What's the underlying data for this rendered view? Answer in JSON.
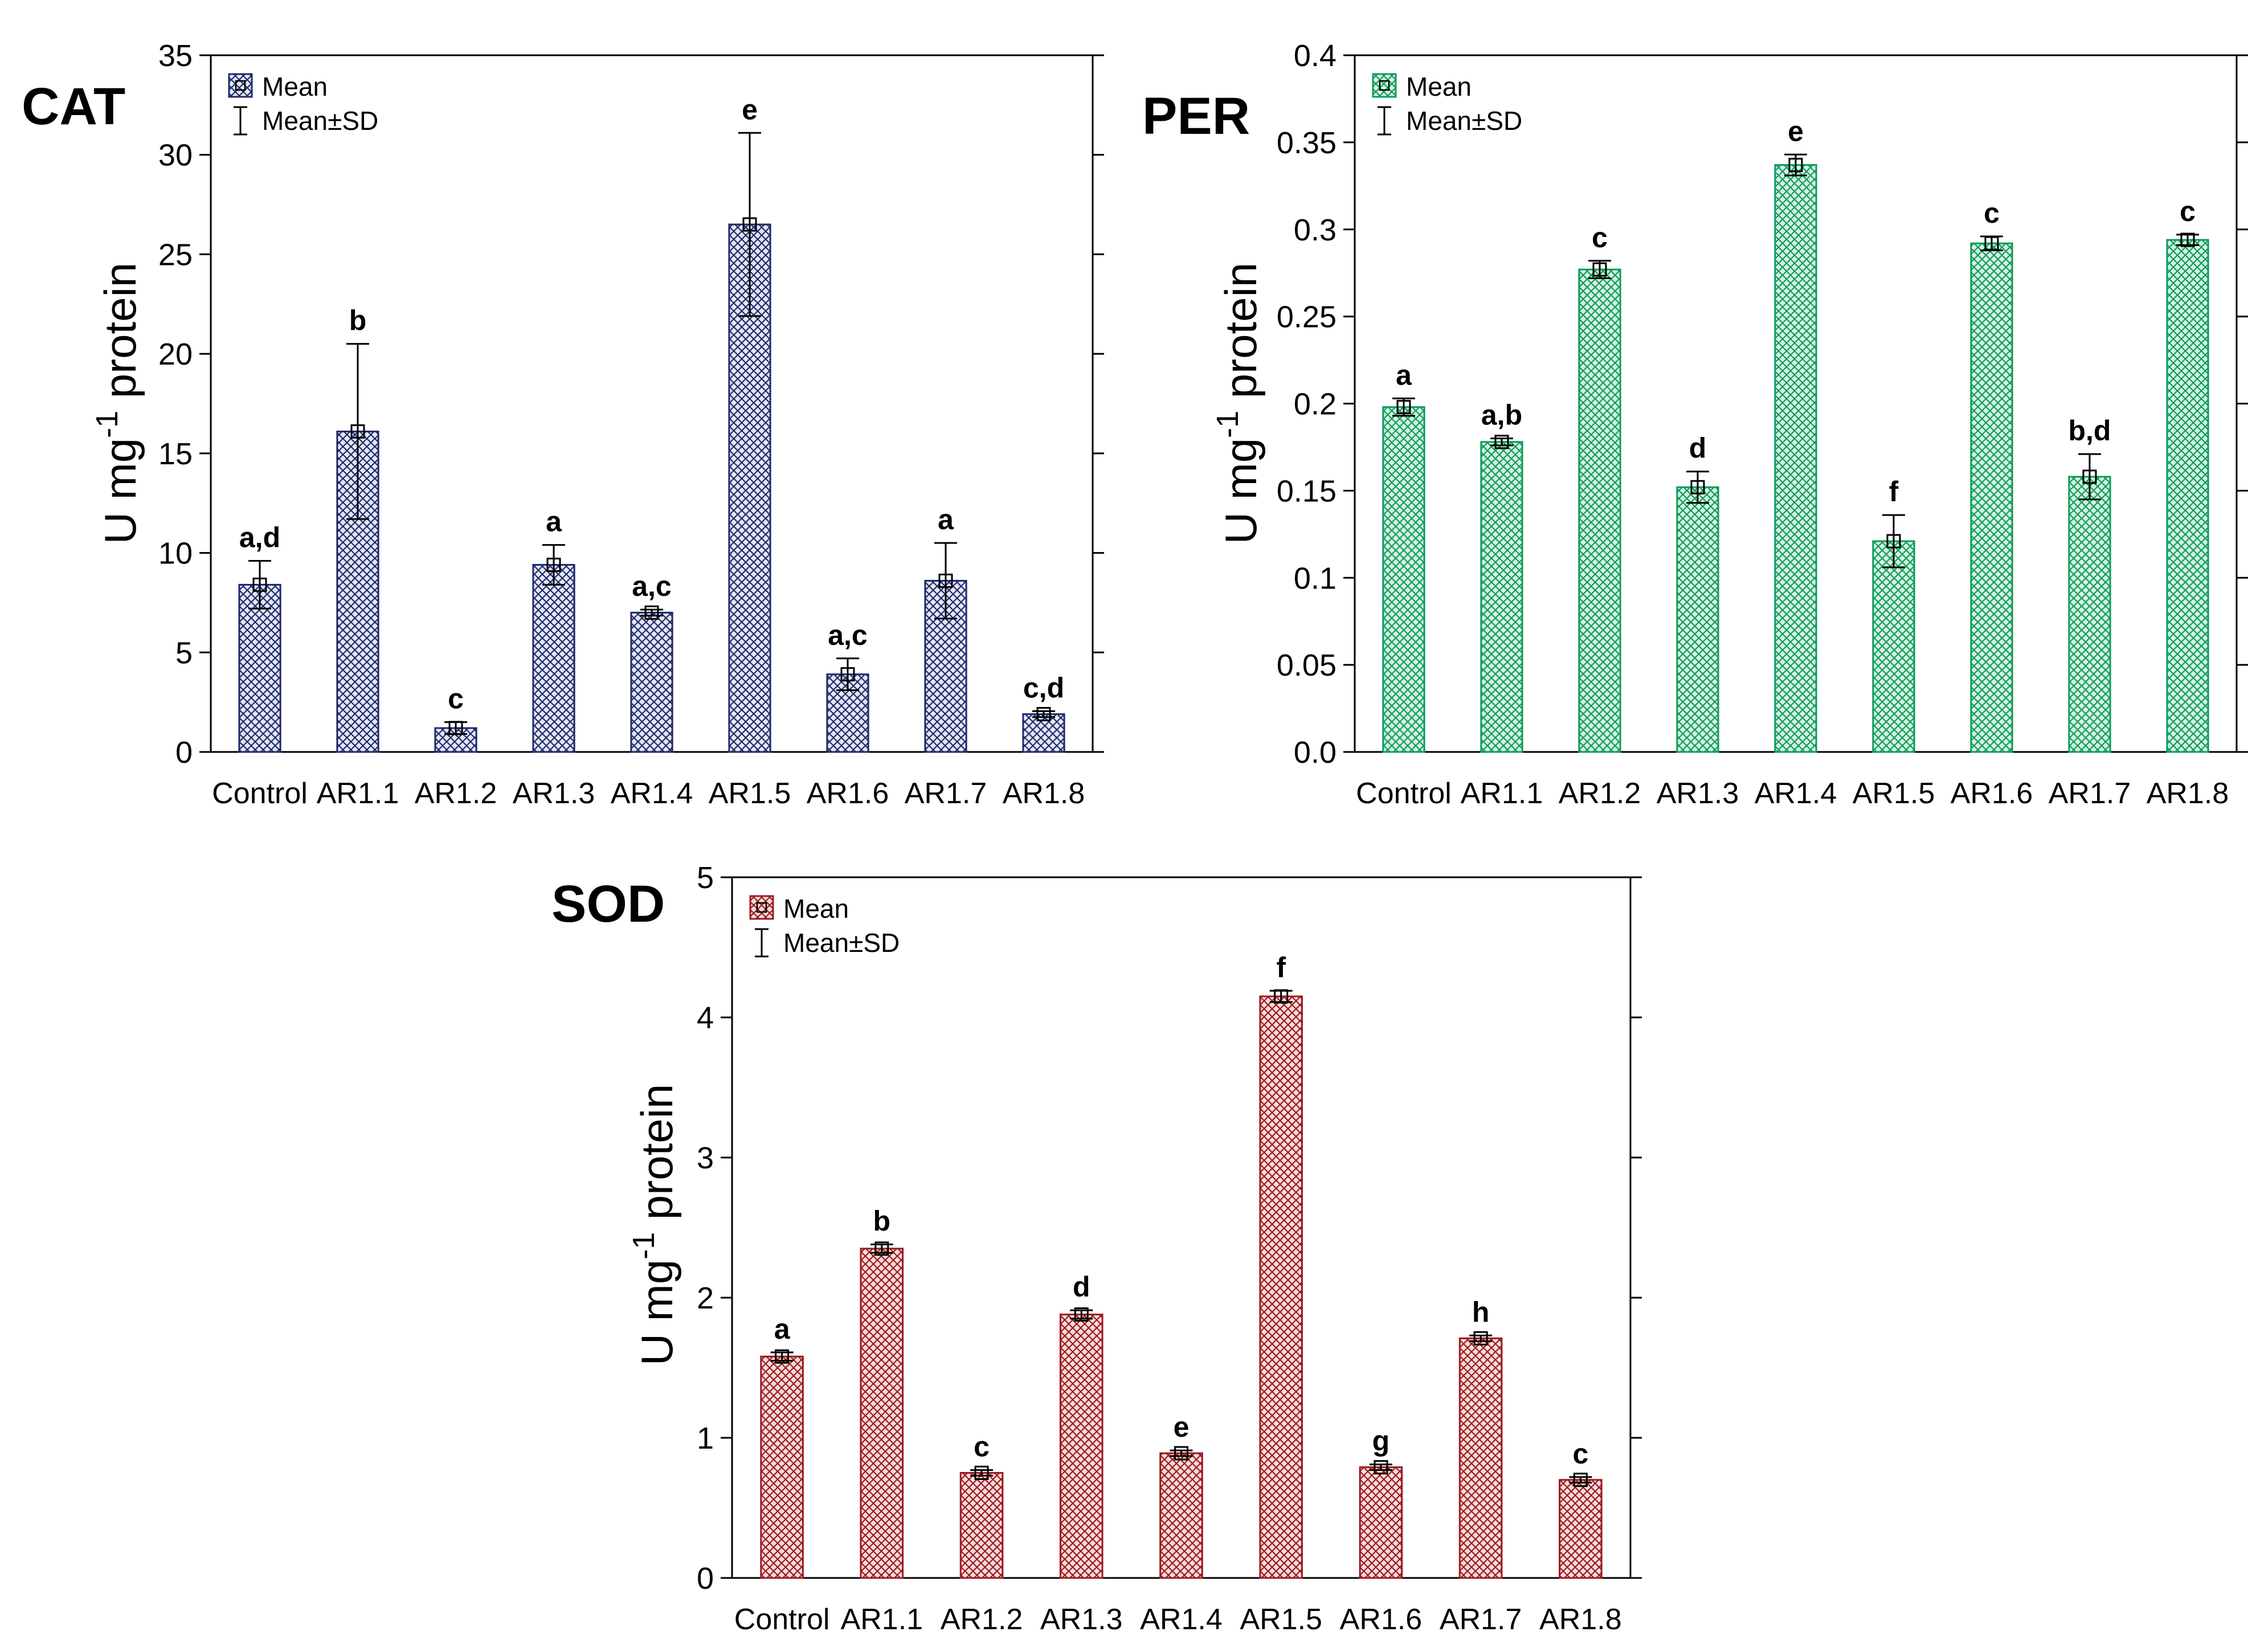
{
  "legend": {
    "mean_label": "Mean",
    "sd_label": "Mean±SD"
  },
  "chart_data": [
    {
      "id": "cat",
      "type": "bar",
      "title": "CAT",
      "ylabel_main": "U mg",
      "ylabel_sup": "-1",
      "ylabel_tail": " protein",
      "xlabel": "",
      "categories": [
        "Control",
        "AR1.1",
        "AR1.2",
        "AR1.3",
        "AR1.4",
        "AR1.5",
        "AR1.6",
        "AR1.7",
        "AR1.8"
      ],
      "values": [
        8.4,
        16.1,
        1.2,
        9.4,
        7.0,
        26.5,
        3.9,
        8.6,
        1.9
      ],
      "sd": [
        1.2,
        4.4,
        0.3,
        1.0,
        0.15,
        4.6,
        0.8,
        1.9,
        0.15
      ],
      "letters": [
        "a,d",
        "b",
        "c",
        "a",
        "a,c",
        "e",
        "a,c",
        "a",
        "c,d"
      ],
      "ylim": [
        0,
        35
      ],
      "yticks": [
        0,
        5,
        10,
        15,
        20,
        25,
        30,
        35
      ],
      "ytick_labels": [
        "0",
        "5",
        "10",
        "15",
        "20",
        "25",
        "30",
        "35"
      ],
      "color": "#1f2a6b",
      "hatch_bg": "#e4e6f2",
      "legend_position": "top-left",
      "grid": false
    },
    {
      "id": "per",
      "type": "bar",
      "title": "PER",
      "ylabel_main": "U mg",
      "ylabel_sup": "-1",
      "ylabel_tail": " protein",
      "xlabel": "",
      "categories": [
        "Control",
        "AR1.1",
        "AR1.2",
        "AR1.3",
        "AR1.4",
        "AR1.5",
        "AR1.6",
        "AR1.7",
        "AR1.8"
      ],
      "values": [
        0.198,
        0.178,
        0.277,
        0.152,
        0.337,
        0.121,
        0.292,
        0.158,
        0.294
      ],
      "sd": [
        0.005,
        0.002,
        0.005,
        0.009,
        0.006,
        0.015,
        0.004,
        0.013,
        0.003
      ],
      "letters": [
        "a",
        "a,b",
        "c",
        "d",
        "e",
        "f",
        "c",
        "b,d",
        "c"
      ],
      "ylim": [
        0,
        0.4
      ],
      "yticks": [
        0,
        0.05,
        0.1,
        0.15,
        0.2,
        0.25,
        0.3,
        0.35,
        0.4
      ],
      "ytick_labels": [
        "0.0",
        "0.05",
        "0.1",
        "0.15",
        "0.2",
        "0.25",
        "0.3",
        "0.35",
        "0.4"
      ],
      "color": "#0e9b5a",
      "hatch_bg": "#d4f1e2",
      "legend_position": "top-left",
      "grid": false
    },
    {
      "id": "sod",
      "type": "bar",
      "title": "SOD",
      "ylabel_main": "U mg",
      "ylabel_sup": "-1",
      "ylabel_tail": " protein",
      "xlabel": "",
      "categories": [
        "Control",
        "AR1.1",
        "AR1.2",
        "AR1.3",
        "AR1.4",
        "AR1.5",
        "AR1.6",
        "AR1.7",
        "AR1.8"
      ],
      "values": [
        1.58,
        2.35,
        0.75,
        1.88,
        0.89,
        4.15,
        0.79,
        1.71,
        0.7
      ],
      "sd": [
        0.03,
        0.03,
        0.02,
        0.03,
        0.02,
        0.04,
        0.02,
        0.02,
        0.02
      ],
      "letters": [
        "a",
        "b",
        "c",
        "d",
        "e",
        "f",
        "g",
        "h",
        "c"
      ],
      "ylim": [
        0,
        5
      ],
      "yticks": [
        0,
        1,
        2,
        3,
        4,
        5
      ],
      "ytick_labels": [
        "0",
        "1",
        "2",
        "3",
        "4",
        "5"
      ],
      "color": "#9b1b1f",
      "hatch_bg": "#f5dcdc",
      "legend_position": "top-left",
      "grid": false
    }
  ]
}
